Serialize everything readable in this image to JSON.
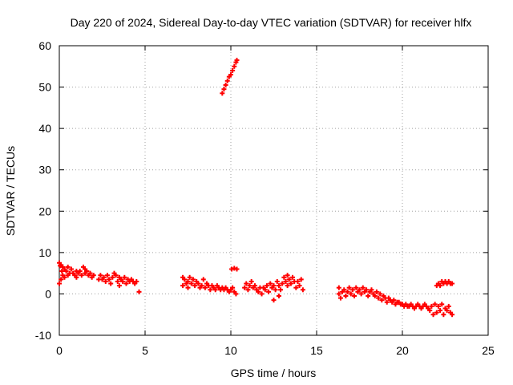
{
  "chart_data": {
    "type": "scatter",
    "title": "Day 220 of 2024, Sidereal Day-to-day VTEC variation (SDTVAR) for receiver hlfx",
    "xlabel": "GPS time / hours",
    "ylabel": "SDTVAR / TECUs",
    "xlim": [
      0,
      25
    ],
    "ylim": [
      -10,
      60
    ],
    "xticks": [
      0,
      5,
      10,
      15,
      20,
      25
    ],
    "yticks": [
      -10,
      0,
      10,
      20,
      30,
      40,
      50,
      60
    ],
    "grid": true,
    "marker_color": "#ff0000",
    "series": [
      {
        "name": "SDTVAR",
        "points": [
          [
            0.0,
            7.5
          ],
          [
            0.0,
            2.5
          ],
          [
            0.05,
            6.8
          ],
          [
            0.1,
            3.5
          ],
          [
            0.1,
            7.0
          ],
          [
            0.15,
            5.5
          ],
          [
            0.2,
            4.5
          ],
          [
            0.2,
            6.5
          ],
          [
            0.3,
            6.0
          ],
          [
            0.3,
            4.0
          ],
          [
            0.4,
            5.5
          ],
          [
            0.5,
            6.5
          ],
          [
            0.5,
            4.5
          ],
          [
            0.6,
            5.0
          ],
          [
            0.7,
            6.0
          ],
          [
            0.8,
            5.0
          ],
          [
            0.9,
            4.5
          ],
          [
            1.0,
            5.5
          ],
          [
            1.0,
            4.0
          ],
          [
            1.1,
            5.0
          ],
          [
            1.2,
            5.5
          ],
          [
            1.3,
            4.5
          ],
          [
            1.4,
            6.5
          ],
          [
            1.5,
            5.0
          ],
          [
            1.5,
            6.0
          ],
          [
            1.6,
            5.5
          ],
          [
            1.7,
            4.5
          ],
          [
            1.8,
            5.0
          ],
          [
            1.9,
            4.0
          ],
          [
            2.0,
            4.5
          ],
          [
            2.3,
            3.5
          ],
          [
            2.4,
            4.5
          ],
          [
            2.5,
            3.5
          ],
          [
            2.6,
            4.0
          ],
          [
            2.7,
            3.0
          ],
          [
            2.8,
            4.5
          ],
          [
            2.9,
            3.5
          ],
          [
            3.0,
            2.5
          ],
          [
            3.1,
            4.0
          ],
          [
            3.2,
            5.0
          ],
          [
            3.3,
            4.5
          ],
          [
            3.4,
            3.0
          ],
          [
            3.5,
            2.0
          ],
          [
            3.5,
            4.0
          ],
          [
            3.6,
            3.5
          ],
          [
            3.7,
            3.0
          ],
          [
            3.8,
            4.0
          ],
          [
            3.9,
            2.5
          ],
          [
            4.0,
            3.5
          ],
          [
            4.1,
            3.0
          ],
          [
            4.2,
            3.5
          ],
          [
            4.3,
            3.0
          ],
          [
            4.4,
            2.5
          ],
          [
            4.5,
            3.0
          ],
          [
            4.65,
            0.5
          ],
          [
            7.2,
            4.0
          ],
          [
            7.2,
            2.0
          ],
          [
            7.3,
            3.5
          ],
          [
            7.4,
            2.5
          ],
          [
            7.5,
            3.0
          ],
          [
            7.5,
            1.5
          ],
          [
            7.6,
            4.0
          ],
          [
            7.7,
            2.5
          ],
          [
            7.8,
            3.5
          ],
          [
            7.9,
            2.0
          ],
          [
            8.0,
            3.0
          ],
          [
            8.1,
            2.5
          ],
          [
            8.2,
            1.5
          ],
          [
            8.3,
            2.0
          ],
          [
            8.4,
            3.5
          ],
          [
            8.5,
            1.5
          ],
          [
            8.6,
            2.5
          ],
          [
            8.7,
            2.0
          ],
          [
            8.8,
            1.0
          ],
          [
            8.9,
            2.0
          ],
          [
            9.0,
            1.5
          ],
          [
            9.1,
            1.0
          ],
          [
            9.2,
            2.0
          ],
          [
            9.3,
            1.5
          ],
          [
            9.4,
            1.0
          ],
          [
            9.5,
            1.5
          ],
          [
            9.6,
            1.0
          ],
          [
            9.7,
            1.5
          ],
          [
            9.8,
            1.0
          ],
          [
            9.9,
            0.5
          ],
          [
            10.0,
            1.0
          ],
          [
            10.1,
            1.5
          ],
          [
            10.2,
            0.5
          ],
          [
            10.3,
            0.0
          ],
          [
            10.05,
            6.0
          ],
          [
            10.2,
            6.2
          ],
          [
            10.35,
            6.0
          ],
          [
            9.5,
            48.5
          ],
          [
            9.6,
            49.5
          ],
          [
            9.7,
            50.5
          ],
          [
            9.8,
            51.5
          ],
          [
            9.9,
            52.5
          ],
          [
            10.0,
            53.0
          ],
          [
            10.1,
            54.0
          ],
          [
            10.2,
            55.0
          ],
          [
            10.3,
            56.0
          ],
          [
            10.35,
            56.5
          ],
          [
            10.8,
            1.5
          ],
          [
            10.9,
            2.5
          ],
          [
            11.0,
            1.0
          ],
          [
            11.1,
            2.0
          ],
          [
            11.2,
            3.0
          ],
          [
            11.3,
            1.5
          ],
          [
            11.4,
            2.0
          ],
          [
            11.5,
            1.0
          ],
          [
            11.6,
            0.5
          ],
          [
            11.7,
            1.5
          ],
          [
            11.8,
            0.0
          ],
          [
            11.9,
            1.5
          ],
          [
            12.0,
            1.0
          ],
          [
            12.1,
            2.0
          ],
          [
            12.2,
            0.5
          ],
          [
            12.3,
            2.5
          ],
          [
            12.4,
            1.5
          ],
          [
            12.5,
            2.0
          ],
          [
            12.6,
            1.0
          ],
          [
            12.7,
            3.0
          ],
          [
            12.8,
            2.0
          ],
          [
            12.9,
            1.0
          ],
          [
            13.0,
            2.5
          ],
          [
            13.1,
            4.0
          ],
          [
            13.2,
            3.0
          ],
          [
            13.3,
            2.0
          ],
          [
            13.4,
            3.5
          ],
          [
            13.5,
            2.5
          ],
          [
            13.6,
            4.0
          ],
          [
            13.7,
            3.0
          ],
          [
            13.8,
            1.5
          ],
          [
            13.9,
            3.0
          ],
          [
            14.0,
            2.0
          ],
          [
            14.1,
            3.5
          ],
          [
            14.2,
            1.0
          ],
          [
            12.5,
            -1.5
          ],
          [
            12.8,
            -0.5
          ],
          [
            13.3,
            4.5
          ],
          [
            16.3,
            0.0
          ],
          [
            16.3,
            1.5
          ],
          [
            16.4,
            -1.0
          ],
          [
            16.5,
            0.5
          ],
          [
            16.6,
            1.0
          ],
          [
            16.7,
            -0.5
          ],
          [
            16.8,
            0.5
          ],
          [
            16.9,
            1.5
          ],
          [
            17.0,
            0.0
          ],
          [
            17.1,
            1.0
          ],
          [
            17.2,
            -0.5
          ],
          [
            17.3,
            1.5
          ],
          [
            17.4,
            0.5
          ],
          [
            17.5,
            1.0
          ],
          [
            17.6,
            0.0
          ],
          [
            17.7,
            1.5
          ],
          [
            17.8,
            0.5
          ],
          [
            17.9,
            1.0
          ],
          [
            18.0,
            -0.5
          ],
          [
            18.1,
            0.5
          ],
          [
            18.2,
            1.0
          ],
          [
            18.3,
            0.0
          ],
          [
            18.4,
            -0.5
          ],
          [
            18.5,
            0.5
          ],
          [
            18.6,
            -1.0
          ],
          [
            18.7,
            0.0
          ],
          [
            18.8,
            -1.5
          ],
          [
            18.9,
            -0.5
          ],
          [
            19.0,
            -1.0
          ],
          [
            19.1,
            -2.0
          ],
          [
            19.2,
            -1.0
          ],
          [
            19.3,
            -1.5
          ],
          [
            19.4,
            -2.0
          ],
          [
            19.5,
            -1.5
          ],
          [
            19.6,
            -2.5
          ],
          [
            19.7,
            -2.0
          ],
          [
            19.8,
            -2.0
          ],
          [
            19.9,
            -2.5
          ],
          [
            20.0,
            -2.5
          ],
          [
            20.1,
            -3.0
          ],
          [
            20.2,
            -2.5
          ],
          [
            20.3,
            -3.0
          ],
          [
            20.4,
            -3.0
          ],
          [
            20.5,
            -2.5
          ],
          [
            20.6,
            -3.0
          ],
          [
            20.7,
            -3.5
          ],
          [
            20.8,
            -3.0
          ],
          [
            20.9,
            -2.5
          ],
          [
            21.0,
            -3.0
          ],
          [
            21.1,
            -3.5
          ],
          [
            21.2,
            -3.0
          ],
          [
            21.3,
            -2.5
          ],
          [
            21.4,
            -3.0
          ],
          [
            21.5,
            -3.5
          ],
          [
            21.6,
            -4.0
          ],
          [
            21.7,
            -3.0
          ],
          [
            21.8,
            -5.0
          ],
          [
            21.9,
            -2.5
          ],
          [
            22.0,
            -4.5
          ],
          [
            22.1,
            -3.0
          ],
          [
            22.2,
            -4.0
          ],
          [
            22.3,
            -2.5
          ],
          [
            22.4,
            -5.0
          ],
          [
            22.5,
            -3.5
          ],
          [
            22.6,
            -4.0
          ],
          [
            22.7,
            -3.0
          ],
          [
            22.8,
            -4.5
          ],
          [
            22.9,
            -5.0
          ],
          [
            22.0,
            2.0
          ],
          [
            22.1,
            2.5
          ],
          [
            22.2,
            2.0
          ],
          [
            22.3,
            3.0
          ],
          [
            22.4,
            2.5
          ],
          [
            22.5,
            3.0
          ],
          [
            22.6,
            2.5
          ],
          [
            22.7,
            3.0
          ],
          [
            22.8,
            2.5
          ],
          [
            22.9,
            2.5
          ]
        ]
      }
    ]
  }
}
